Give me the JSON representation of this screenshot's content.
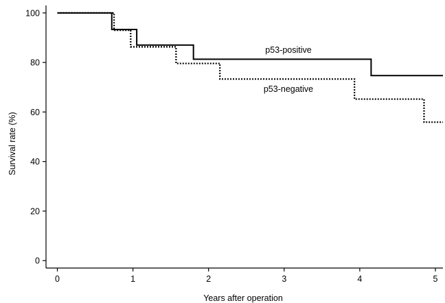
{
  "chart_data": {
    "type": "line",
    "subtype": "step (Kaplan-Meier)",
    "xlabel": "Years after operation",
    "ylabel": "Survival rate (%)",
    "xlim": [
      -0.15,
      5.1
    ],
    "ylim": [
      -3,
      103
    ],
    "xticks": [
      0,
      1,
      2,
      3,
      4,
      5
    ],
    "yticks": [
      0,
      20,
      40,
      60,
      80,
      100
    ],
    "grid": false,
    "series": [
      {
        "name": "p53-positive",
        "style": "solid",
        "color": "#000000",
        "x": [
          0,
          0.72,
          1.05,
          1.8,
          4.15,
          5.1
        ],
        "y": [
          100,
          93.3,
          87,
          81.3,
          74.7,
          74.7
        ]
      },
      {
        "name": "p53-negative",
        "style": "dotted",
        "color": "#000000",
        "x": [
          0,
          0.75,
          0.97,
          1.57,
          2.15,
          3.93,
          4.85,
          5.1
        ],
        "y": [
          100,
          93,
          86.3,
          79.6,
          73.3,
          65.2,
          55.9,
          55.9
        ]
      }
    ]
  }
}
